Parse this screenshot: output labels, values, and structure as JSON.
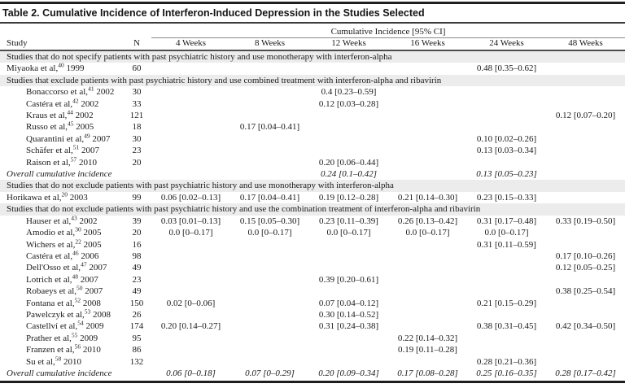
{
  "title": "Table 2. Cumulative Incidence of Interferon-Induced Depression in the Studies Selected",
  "table": {
    "group_header": "Cumulative Incidence [95% CI]",
    "columns": {
      "study": "Study",
      "n": "N",
      "weeks": [
        "4 Weeks",
        "8 Weeks",
        "12 Weeks",
        "16 Weeks",
        "24 Weeks",
        "48 Weeks"
      ]
    },
    "sections": [
      {
        "header": "Studies that do not specify patients with past psychiatric history and use monotherapy with interferon-alpha",
        "rows": [
          {
            "study": "Miyaoka et al,",
            "ref": "40",
            "year": "1999",
            "n": "60",
            "indent": false,
            "italic": false,
            "values": [
              "",
              "",
              "",
              "",
              "0.48 [0.35–0.62]",
              ""
            ]
          }
        ]
      },
      {
        "header": "Studies that exclude patients with past psychiatric history and use combined treatment with interferon-alpha and ribavirin",
        "rows": [
          {
            "study": "Bonaccorso et al,",
            "ref": "41",
            "year": "2002",
            "n": "30",
            "indent": true,
            "italic": false,
            "values": [
              "",
              "",
              "0.4 [0.23–0.59]",
              "",
              "",
              ""
            ]
          },
          {
            "study": "Castéra et al,",
            "ref": "42",
            "year": "2002",
            "n": "33",
            "indent": true,
            "italic": false,
            "values": [
              "",
              "",
              "0.12 [0.03–0.28]",
              "",
              "",
              ""
            ]
          },
          {
            "study": "Kraus et al,",
            "ref": "44",
            "year": "2002",
            "n": "121",
            "indent": true,
            "italic": false,
            "values": [
              "",
              "",
              "",
              "",
              "",
              "0.12 [0.07–0.20]"
            ]
          },
          {
            "study": "Russo et al,",
            "ref": "45",
            "year": "2005",
            "n": "18",
            "indent": true,
            "italic": false,
            "values": [
              "",
              "0.17 [0.04–0.41]",
              "",
              "",
              "",
              ""
            ]
          },
          {
            "study": "Quarantini et al,",
            "ref": "49",
            "year": "2007",
            "n": "30",
            "indent": true,
            "italic": false,
            "values": [
              "",
              "",
              "",
              "",
              "0.10 [0.02–0.26]",
              ""
            ]
          },
          {
            "study": "Schäfer et al,",
            "ref": "51",
            "year": "2007",
            "n": "23",
            "indent": true,
            "italic": false,
            "values": [
              "",
              "",
              "",
              "",
              "0.13 [0.03–0.34]",
              ""
            ]
          },
          {
            "study": "Raison et al,",
            "ref": "57",
            "year": "2010",
            "n": "20",
            "indent": true,
            "italic": false,
            "values": [
              "",
              "",
              "0.20 [0.06–0.44]",
              "",
              "",
              ""
            ]
          },
          {
            "study": "Overall cumulative incidence",
            "ref": "",
            "year": "",
            "n": "",
            "indent": false,
            "italic": true,
            "values": [
              "",
              "",
              "0.24 [0.1–0.42]",
              "",
              "0.13 [0.05–0.23]",
              ""
            ]
          }
        ]
      },
      {
        "header": "Studies that do not exclude patients with past psychiatric history and use monotherapy with interferon-alpha",
        "rows": [
          {
            "study": "Horikawa et al,",
            "ref": "20",
            "year": "2003",
            "n": "99",
            "indent": false,
            "italic": false,
            "values": [
              "0.06 [0.02–0.13]",
              "0.17 [0.04–0.41]",
              "0.19 [0.12–0.28]",
              "0.21 [0.14–0.30]",
              "0.23 [0.15–0.33]",
              ""
            ]
          }
        ]
      },
      {
        "header": "Studies that do not exclude patients with past psychiatric history and use the combination treatment of interferon-alpha and ribavirin",
        "rows": [
          {
            "study": "Hauser et al,",
            "ref": "43",
            "year": "2002",
            "n": "39",
            "indent": true,
            "italic": false,
            "values": [
              "0.03 [0.01–0.13]",
              "0.15 [0.05–0.30]",
              "0.23 [0.11–0.39]",
              "0.26 [0.13–0.42]",
              "0.31 [0.17–0.48]",
              "0.33 [0.19–0.50]"
            ]
          },
          {
            "study": "Amodio et al,",
            "ref": "30",
            "year": "2005",
            "n": "20",
            "indent": true,
            "italic": false,
            "values": [
              "0.0 [0–0.17]",
              "0.0 [0–0.17]",
              "0.0 [0–0.17]",
              "0.0 [0–0.17]",
              "0.0 [0–0.17]",
              ""
            ]
          },
          {
            "study": "Wichers et al,",
            "ref": "22",
            "year": "2005",
            "n": "16",
            "indent": true,
            "italic": false,
            "values": [
              "",
              "",
              "",
              "",
              "0.31 [0.11–0.59]",
              ""
            ]
          },
          {
            "study": "Castéra et al,",
            "ref": "46",
            "year": "2006",
            "n": "98",
            "indent": true,
            "italic": false,
            "values": [
              "",
              "",
              "",
              "",
              "",
              "0.17 [0.10–0.26]"
            ]
          },
          {
            "study": "Dell'Osso et al,",
            "ref": "47",
            "year": "2007",
            "n": "49",
            "indent": true,
            "italic": false,
            "values": [
              "",
              "",
              "",
              "",
              "",
              "0.12 [0.05–0.25]"
            ]
          },
          {
            "study": "Lotrich et al,",
            "ref": "48",
            "year": "2007",
            "n": "23",
            "indent": true,
            "italic": false,
            "values": [
              "",
              "",
              "0.39 [0.20–0.61]",
              "",
              "",
              ""
            ]
          },
          {
            "study": "Robaeys et al,",
            "ref": "50",
            "year": "2007",
            "n": "49",
            "indent": true,
            "italic": false,
            "values": [
              "",
              "",
              "",
              "",
              "",
              "0.38 [0.25–0.54]"
            ]
          },
          {
            "study": "Fontana et al,",
            "ref": "52",
            "year": "2008",
            "n": "150",
            "indent": true,
            "italic": false,
            "values": [
              "0.02 [0–0.06]",
              "",
              "0.07 [0.04–0.12]",
              "",
              "0.21 [0.15–0.29]",
              ""
            ]
          },
          {
            "study": "Pawelczyk et al,",
            "ref": "53",
            "year": "2008",
            "n": "26",
            "indent": true,
            "italic": false,
            "values": [
              "",
              "",
              "0.30 [0.14–0.52]",
              "",
              "",
              ""
            ]
          },
          {
            "study": "Castellví et al,",
            "ref": "54",
            "year": "2009",
            "n": "174",
            "indent": true,
            "italic": false,
            "values": [
              "0.20 [0.14–0.27]",
              "",
              "0.31 [0.24–0.38]",
              "",
              "0.38 [0.31–0.45]",
              "0.42 [0.34–0.50]"
            ]
          },
          {
            "study": "Prather et al,",
            "ref": "55",
            "year": "2009",
            "n": "95",
            "indent": true,
            "italic": false,
            "values": [
              "",
              "",
              "",
              "0.22 [0.14–0.32]",
              "",
              ""
            ]
          },
          {
            "study": "Franzen et al,",
            "ref": "56",
            "year": "2010",
            "n": "86",
            "indent": true,
            "italic": false,
            "values": [
              "",
              "",
              "",
              "0.19 [0.11–0.28]",
              "",
              ""
            ]
          },
          {
            "study": "Su et al,",
            "ref": "58",
            "year": "2010",
            "n": "132",
            "indent": true,
            "italic": false,
            "values": [
              "",
              "",
              "",
              "",
              "0.28 [0.21–0.36]",
              ""
            ]
          },
          {
            "study": "Overall cumulative incidence",
            "ref": "",
            "year": "",
            "n": "",
            "indent": false,
            "italic": true,
            "values": [
              "0.06 [0–0.18]",
              "0.07 [0–0.29]",
              "0.20 [0.09–0.34]",
              "0.17 [0.08–0.28]",
              "0.25 [0.16–0.35]",
              "0.28 [0.17–0.42]"
            ]
          }
        ]
      }
    ]
  },
  "colors": {
    "section_band": "#ececec",
    "rule_dark": "#1f1f1f",
    "rule_mid": "#4d4d4d",
    "text": "#1a1a1a"
  }
}
